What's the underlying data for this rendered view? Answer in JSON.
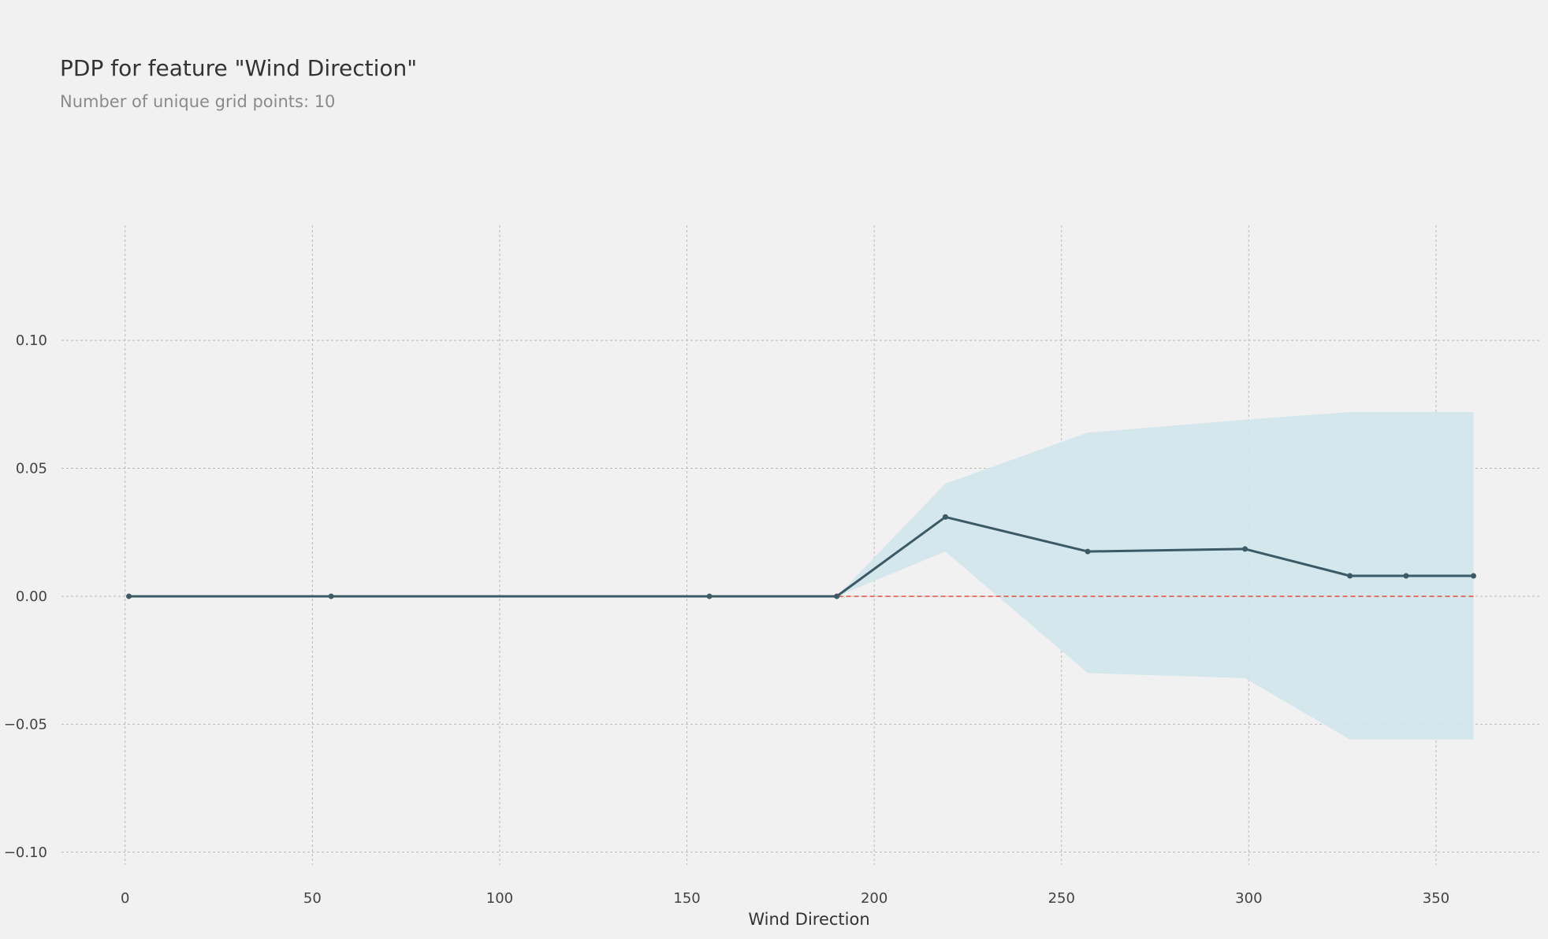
{
  "chart_data": {
    "type": "line",
    "title": "PDP for feature \"Wind Direction\"",
    "subtitle": "Number of unique grid points: 10",
    "xlabel": "Wind Direction",
    "ylabel": "",
    "xlim": [
      -17,
      378
    ],
    "ylim": [
      -0.105,
      0.145
    ],
    "xticks": [
      0,
      50,
      100,
      150,
      200,
      250,
      300,
      350
    ],
    "yticks": [
      -0.1,
      -0.05,
      0.0,
      0.05,
      0.1
    ],
    "xtick_labels": [
      "0",
      "50",
      "100",
      "150",
      "200",
      "250",
      "300",
      "350"
    ],
    "ytick_labels": [
      "−0.10",
      "−0.05",
      "0.00",
      "0.05",
      "0.10"
    ],
    "grid": true,
    "series": [
      {
        "x": [
          1,
          55,
          156,
          190,
          219,
          257,
          299,
          327,
          342,
          360
        ],
        "y": [
          0.0,
          0.0,
          0.0,
          0.0,
          0.031,
          0.0175,
          0.0185,
          0.008,
          0.008,
          0.008
        ],
        "lower": [
          0.0,
          0.0,
          0.0,
          0.0,
          0.0175,
          -0.03,
          -0.032,
          -0.056,
          -0.056,
          -0.056
        ],
        "upper": [
          0.0,
          0.0,
          0.0,
          0.0,
          0.044,
          0.064,
          0.069,
          0.072,
          0.072,
          0.072
        ]
      }
    ],
    "reference_line": {
      "y": 0.0,
      "color": "#e74c3c"
    },
    "colors": {
      "line": "#3c5a66",
      "band": "#cfe5ec",
      "grid": "#b9b9b9",
      "background": "#f1f1f1"
    }
  }
}
